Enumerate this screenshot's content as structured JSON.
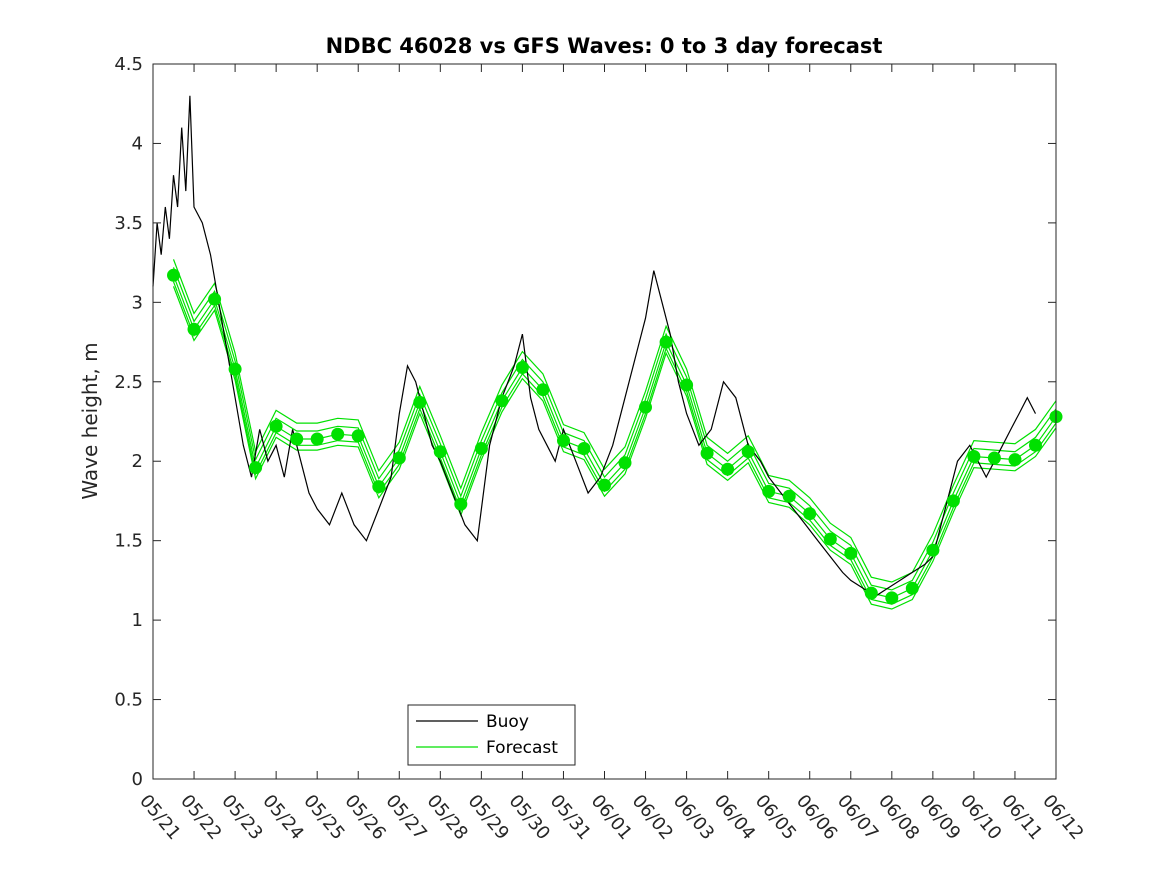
{
  "chart_data": {
    "type": "line",
    "title": "NDBC 46028 vs GFS Waves: 0 to 3 day forecast",
    "xlabel": "",
    "ylabel": "Wave height, m",
    "ylim": [
      0,
      4.5
    ],
    "yticks": [
      "0",
      "0.5",
      "1",
      "1.5",
      "2",
      "2.5",
      "3",
      "3.5",
      "4",
      "4.5"
    ],
    "xlim": [
      0,
      22
    ],
    "xticks": [
      "05/21",
      "05/22",
      "05/23",
      "05/24",
      "05/25",
      "05/26",
      "05/27",
      "05/28",
      "05/29",
      "05/30",
      "05/31",
      "06/01",
      "06/02",
      "06/03",
      "06/04",
      "06/05",
      "06/06",
      "06/07",
      "06/08",
      "06/09",
      "06/10",
      "06/11",
      "06/12"
    ],
    "legend": {
      "position": "bottom-left",
      "entries": [
        "Buoy",
        "Forecast"
      ]
    },
    "colors": {
      "buoy": "#000000",
      "forecast": "#00e000",
      "marker": "#00e000"
    },
    "series": [
      {
        "name": "Buoy",
        "x": [
          0.0,
          0.1,
          0.2,
          0.3,
          0.4,
          0.5,
          0.6,
          0.7,
          0.8,
          0.9,
          1.0,
          1.2,
          1.4,
          1.6,
          1.8,
          2.0,
          2.2,
          2.4,
          2.6,
          2.8,
          3.0,
          3.2,
          3.4,
          3.6,
          3.8,
          4.0,
          4.3,
          4.6,
          4.9,
          5.2,
          5.5,
          5.8,
          6.0,
          6.2,
          6.4,
          6.6,
          6.8,
          7.0,
          7.3,
          7.6,
          7.9,
          8.2,
          8.5,
          8.8,
          9.0,
          9.2,
          9.4,
          9.6,
          9.8,
          10.0,
          10.3,
          10.6,
          10.9,
          11.2,
          11.5,
          11.8,
          12.0,
          12.2,
          12.4,
          12.6,
          12.8,
          13.0,
          13.3,
          13.6,
          13.9,
          14.2,
          14.5,
          14.8,
          15.0,
          15.3,
          15.6,
          15.9,
          16.2,
          16.5,
          16.8,
          17.0,
          17.3,
          17.6,
          17.9,
          18.2,
          18.5,
          18.8,
          19.0,
          19.3,
          19.6,
          19.9,
          20.1,
          20.3,
          20.5,
          20.7,
          20.9,
          21.1,
          21.3,
          21.5
        ],
        "y": [
          3.1,
          3.5,
          3.3,
          3.6,
          3.4,
          3.8,
          3.6,
          4.1,
          3.7,
          4.3,
          3.6,
          3.5,
          3.3,
          3.0,
          2.7,
          2.4,
          2.1,
          1.9,
          2.2,
          2.0,
          2.1,
          1.9,
          2.2,
          2.0,
          1.8,
          1.7,
          1.6,
          1.8,
          1.6,
          1.5,
          1.7,
          1.9,
          2.3,
          2.6,
          2.5,
          2.3,
          2.1,
          2.0,
          1.8,
          1.6,
          1.5,
          2.1,
          2.4,
          2.6,
          2.8,
          2.4,
          2.2,
          2.1,
          2.0,
          2.2,
          2.0,
          1.8,
          1.9,
          2.1,
          2.4,
          2.7,
          2.9,
          3.2,
          3.0,
          2.8,
          2.5,
          2.3,
          2.1,
          2.2,
          2.5,
          2.4,
          2.1,
          2.0,
          1.9,
          1.8,
          1.7,
          1.6,
          1.5,
          1.4,
          1.3,
          1.25,
          1.2,
          1.15,
          1.2,
          1.25,
          1.3,
          1.35,
          1.4,
          1.7,
          2.0,
          2.1,
          2.0,
          1.9,
          2.0,
          2.1,
          2.2,
          2.3,
          2.4,
          2.3
        ]
      },
      {
        "name": "Forecast",
        "x": [
          0.5,
          1.0,
          1.5,
          2.0,
          2.5,
          3.0,
          3.5,
          4.0,
          4.5,
          5.0,
          5.5,
          6.0,
          6.5,
          7.0,
          7.5,
          8.0,
          8.5,
          9.0,
          9.5,
          10.0,
          10.5,
          11.0,
          11.5,
          12.0,
          12.5,
          13.0,
          13.5,
          14.0,
          14.5,
          15.0,
          15.5,
          16.0,
          16.5,
          17.0,
          17.5,
          18.0,
          18.5,
          19.0,
          19.5,
          20.0,
          20.5,
          21.0,
          21.5,
          22.0
        ],
        "y": [
          3.17,
          2.83,
          3.02,
          2.58,
          1.96,
          2.22,
          2.14,
          2.14,
          2.17,
          2.16,
          1.84,
          2.02,
          2.37,
          2.06,
          1.73,
          2.08,
          2.38,
          2.59,
          2.45,
          2.13,
          2.08,
          1.85,
          1.99,
          2.34,
          2.75,
          2.48,
          2.05,
          1.95,
          2.06,
          1.81,
          1.78,
          1.67,
          1.51,
          1.42,
          1.17,
          1.14,
          1.2,
          1.44,
          1.75,
          2.03,
          2.02,
          2.01,
          2.1,
          2.28
        ]
      }
    ]
  }
}
